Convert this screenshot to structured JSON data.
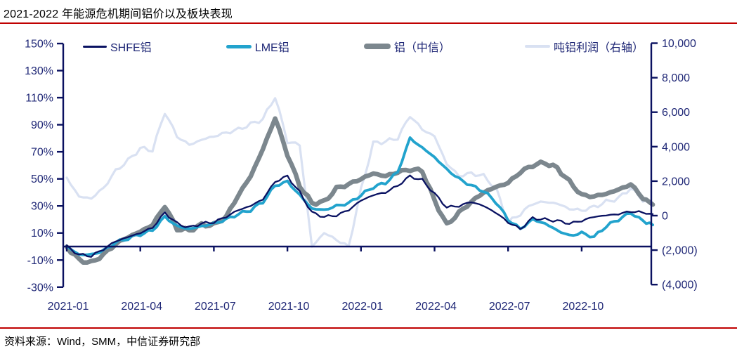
{
  "page": {
    "title": "2021-2022 年能源危机期间铝价以及板块表现",
    "source": "资料来源：Wind，SMM，中信证券研究部"
  },
  "colors": {
    "divider_red": "#C00000",
    "axis_line": "#0A1160",
    "axis_text": "#1F2776"
  },
  "chart_data": {
    "type": "line",
    "title": "2021-2022 年能源危机期间铝价以及板块表现",
    "grid": false,
    "legend_position": "top",
    "x_axis": {
      "start": "2021-01",
      "unit": "months since 2021-01",
      "domain_months": [
        0,
        23.9
      ],
      "tick_labels": [
        "2021-01",
        "2021-04",
        "2021-07",
        "2021-10",
        "2022-01",
        "2022-04",
        "2022-07",
        "2022-10"
      ],
      "tick_months": [
        0,
        3,
        6,
        9,
        12,
        15,
        18,
        21
      ]
    },
    "left_axis": {
      "unit": "%",
      "range": [
        -30,
        150
      ],
      "tick_values": [
        150,
        130,
        110,
        90,
        70,
        50,
        30,
        10,
        -10,
        -30
      ],
      "tick_labels": [
        "150%",
        "130%",
        "110%",
        "90%",
        "70%",
        "50%",
        "30%",
        "10%",
        "-10%",
        "-30%"
      ]
    },
    "right_axis": {
      "unit": "元/吨",
      "range": [
        -4000,
        10000
      ],
      "tick_values": [
        10000,
        8000,
        6000,
        4000,
        2000,
        0,
        -2000,
        -4000
      ],
      "tick_labels": [
        "10,000",
        "8,000",
        "6,000",
        "4,000",
        "2,000",
        "0",
        "(2,000)",
        "(4,000)"
      ]
    },
    "series": [
      {
        "name": "SHFE铝",
        "axis": "left",
        "color": "#0A1262",
        "stroke_width": 2.3,
        "points": [
          [
            0,
            0
          ],
          [
            0.5,
            -6
          ],
          [
            1,
            -7
          ],
          [
            1.5,
            -2
          ],
          [
            2,
            4
          ],
          [
            2.5,
            7
          ],
          [
            3,
            10
          ],
          [
            3.5,
            14
          ],
          [
            4,
            25
          ],
          [
            4.5,
            17
          ],
          [
            5,
            14
          ],
          [
            5.5,
            17
          ],
          [
            6,
            18
          ],
          [
            6.5,
            22
          ],
          [
            7,
            27
          ],
          [
            7.5,
            30
          ],
          [
            8,
            35
          ],
          [
            8.5,
            48
          ],
          [
            9,
            52
          ],
          [
            9.5,
            40
          ],
          [
            10,
            25
          ],
          [
            10.5,
            22
          ],
          [
            11,
            23
          ],
          [
            11.5,
            27
          ],
          [
            12,
            34
          ],
          [
            12.5,
            38
          ],
          [
            13,
            40
          ],
          [
            13.5,
            45
          ],
          [
            14,
            52
          ],
          [
            14.5,
            49
          ],
          [
            15,
            39
          ],
          [
            15.5,
            29
          ],
          [
            16,
            30
          ],
          [
            16.5,
            33
          ],
          [
            17,
            30
          ],
          [
            17.5,
            25
          ],
          [
            18,
            18
          ],
          [
            18.5,
            13
          ],
          [
            19,
            21
          ],
          [
            19.5,
            20
          ],
          [
            20,
            19
          ],
          [
            20.5,
            17
          ],
          [
            21,
            19
          ],
          [
            21.5,
            22
          ],
          [
            22,
            23
          ],
          [
            22.5,
            24
          ],
          [
            23,
            26
          ],
          [
            23.5,
            25
          ],
          [
            23.9,
            24
          ]
        ]
      },
      {
        "name": "LME铝",
        "axis": "left",
        "color": "#22A3CD",
        "stroke_width": 3.8,
        "points": [
          [
            0,
            0
          ],
          [
            0.5,
            -6
          ],
          [
            1,
            -6
          ],
          [
            1.5,
            -3
          ],
          [
            2,
            3
          ],
          [
            2.5,
            6
          ],
          [
            3,
            9
          ],
          [
            3.5,
            12
          ],
          [
            4,
            22
          ],
          [
            4.5,
            15
          ],
          [
            5,
            13
          ],
          [
            5.5,
            15
          ],
          [
            6,
            17
          ],
          [
            6.5,
            20
          ],
          [
            7,
            24
          ],
          [
            7.5,
            27
          ],
          [
            8,
            33
          ],
          [
            8.5,
            45
          ],
          [
            9,
            48
          ],
          [
            9.5,
            38
          ],
          [
            10,
            28
          ],
          [
            10.5,
            27
          ],
          [
            11,
            30
          ],
          [
            11.5,
            32
          ],
          [
            12,
            38
          ],
          [
            12.5,
            44
          ],
          [
            13,
            47
          ],
          [
            13.5,
            55
          ],
          [
            14,
            80
          ],
          [
            14.5,
            73
          ],
          [
            15,
            66
          ],
          [
            15.5,
            57
          ],
          [
            16,
            50
          ],
          [
            16.5,
            45
          ],
          [
            17,
            41
          ],
          [
            17.5,
            33
          ],
          [
            18,
            20
          ],
          [
            18.5,
            13
          ],
          [
            19,
            20
          ],
          [
            19.5,
            17
          ],
          [
            20,
            12
          ],
          [
            20.5,
            8
          ],
          [
            21,
            10
          ],
          [
            21.5,
            7
          ],
          [
            22,
            15
          ],
          [
            22.5,
            20
          ],
          [
            23,
            25
          ],
          [
            23.5,
            19
          ],
          [
            23.9,
            16
          ]
        ]
      },
      {
        "name": "铝（中信）",
        "axis": "left",
        "color": "#7C878E",
        "stroke_width": 6.5,
        "points": [
          [
            0,
            0
          ],
          [
            0.5,
            -10
          ],
          [
            1,
            -12
          ],
          [
            1.5,
            -6
          ],
          [
            2,
            2
          ],
          [
            2.5,
            7
          ],
          [
            3,
            11
          ],
          [
            3.5,
            16
          ],
          [
            4,
            30
          ],
          [
            4.5,
            13
          ],
          [
            5,
            12
          ],
          [
            5.5,
            16
          ],
          [
            6,
            16
          ],
          [
            6.5,
            22
          ],
          [
            7,
            38
          ],
          [
            7.5,
            52
          ],
          [
            8,
            72
          ],
          [
            8.5,
            95
          ],
          [
            9,
            68
          ],
          [
            9.5,
            45
          ],
          [
            10,
            32
          ],
          [
            10.5,
            33
          ],
          [
            11,
            43
          ],
          [
            11.5,
            46
          ],
          [
            12,
            50
          ],
          [
            12.5,
            54
          ],
          [
            13,
            52
          ],
          [
            13.5,
            55
          ],
          [
            14,
            57
          ],
          [
            14.5,
            56
          ],
          [
            15,
            34
          ],
          [
            15.5,
            16
          ],
          [
            16,
            25
          ],
          [
            16.5,
            33
          ],
          [
            17,
            40
          ],
          [
            17.5,
            44
          ],
          [
            18,
            47
          ],
          [
            18.5,
            55
          ],
          [
            19,
            60
          ],
          [
            19.5,
            62
          ],
          [
            20,
            58
          ],
          [
            20.5,
            48
          ],
          [
            21,
            38
          ],
          [
            21.5,
            37
          ],
          [
            22,
            39
          ],
          [
            22.5,
            42
          ],
          [
            23,
            46
          ],
          [
            23.5,
            36
          ],
          [
            23.9,
            31
          ]
        ]
      },
      {
        "name": "吨铝利润（右轴）",
        "axis": "right",
        "color": "#D9E1F2",
        "stroke_width": 3.2,
        "points": [
          [
            0,
            2200
          ],
          [
            0.5,
            1100
          ],
          [
            1,
            1000
          ],
          [
            1.5,
            1600
          ],
          [
            2,
            2600
          ],
          [
            2.5,
            3200
          ],
          [
            3,
            3900
          ],
          [
            3.5,
            3800
          ],
          [
            4,
            6000
          ],
          [
            4.5,
            4600
          ],
          [
            5,
            4100
          ],
          [
            5.5,
            4400
          ],
          [
            6,
            4600
          ],
          [
            6.5,
            4800
          ],
          [
            7,
            5000
          ],
          [
            7.5,
            5300
          ],
          [
            8,
            5600
          ],
          [
            8.5,
            6900
          ],
          [
            9,
            4300
          ],
          [
            9.5,
            4100
          ],
          [
            10,
            -1800
          ],
          [
            10.5,
            -1000
          ],
          [
            11,
            -1400
          ],
          [
            11.5,
            -1800
          ],
          [
            12,
            1500
          ],
          [
            12.5,
            4200
          ],
          [
            13,
            4300
          ],
          [
            13.5,
            4500
          ],
          [
            14,
            5800
          ],
          [
            14.5,
            5000
          ],
          [
            15,
            4600
          ],
          [
            15.5,
            3000
          ],
          [
            16,
            2300
          ],
          [
            16.5,
            2450
          ],
          [
            17,
            2300
          ],
          [
            17.5,
            1600
          ],
          [
            18,
            -400
          ],
          [
            18.5,
            100
          ],
          [
            19,
            700
          ],
          [
            19.5,
            800
          ],
          [
            20,
            700
          ],
          [
            20.5,
            400
          ],
          [
            21,
            300
          ],
          [
            21.5,
            500
          ],
          [
            22,
            800
          ],
          [
            22.5,
            1000
          ],
          [
            23,
            1600
          ],
          [
            23.5,
            900
          ],
          [
            23.9,
            600
          ]
        ]
      }
    ]
  }
}
